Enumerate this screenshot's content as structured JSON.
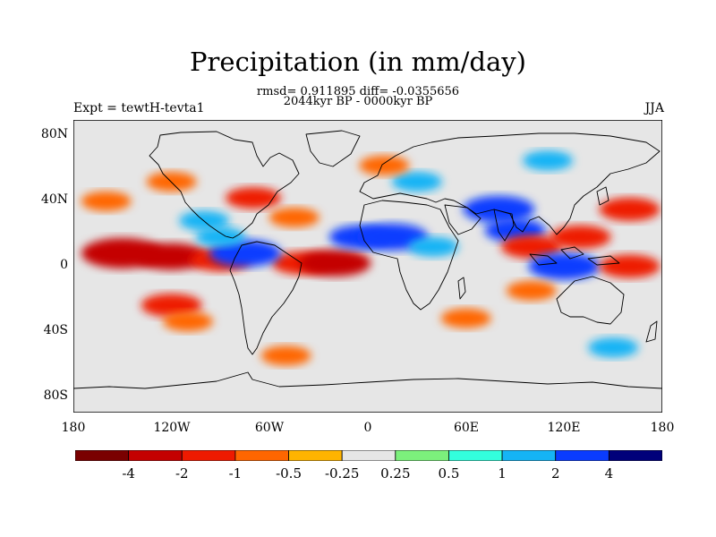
{
  "title": "Precipitation (in mm/day)",
  "subtitle_stats": "rmsd= 0.911895 diff= -0.0355656",
  "subtitle_period": "2044kyr BP - 0000kyr BP",
  "left_label": "Expt = tewtH-tevta1",
  "right_label": "JJA",
  "y_ticks": [
    "80N",
    "40N",
    "0",
    "40S",
    "80S"
  ],
  "x_ticks": [
    "180",
    "120W",
    "60W",
    "0",
    "60E",
    "120E",
    "180"
  ],
  "colorbar": {
    "levels": [
      "-4",
      "-2",
      "-1",
      "-0.5",
      "-0.25",
      "0.25",
      "0.5",
      "1",
      "2",
      "4"
    ],
    "colors": [
      "#7a0000",
      "#c40000",
      "#ee1a00",
      "#ff6600",
      "#ffb400",
      "#e6e6e6",
      "#7cf07c",
      "#33ffdd",
      "#15b4f5",
      "#0a3cff",
      "#00007a"
    ]
  },
  "chart_data": {
    "type": "heatmap",
    "title": "Precipitation (in mm/day)",
    "variable": "Precipitation difference",
    "units": "mm/day",
    "season": "JJA",
    "experiment": "tewtH-tevta1",
    "period": "2044kyr BP - 0000kyr BP",
    "rmsd": 0.911895,
    "diff": -0.0355656,
    "lon_range": [
      -180,
      180
    ],
    "lat_range": [
      -90,
      90
    ],
    "contour_levels": [
      -4,
      -2,
      -1,
      -0.5,
      -0.25,
      0.25,
      0.5,
      1,
      2,
      4
    ],
    "features": [
      {
        "lon": -150,
        "lat": 8,
        "value": -4
      },
      {
        "lon": -120,
        "lat": 6,
        "value": -3
      },
      {
        "lon": -90,
        "lat": 4,
        "value": -2
      },
      {
        "lon": -40,
        "lat": 2,
        "value": -2
      },
      {
        "lon": -20,
        "lat": 2,
        "value": -3
      },
      {
        "lon": -120,
        "lat": -24,
        "value": -2
      },
      {
        "lon": -110,
        "lat": -34,
        "value": -1
      },
      {
        "lon": -75,
        "lat": 8,
        "value": 3
      },
      {
        "lon": -90,
        "lat": 18,
        "value": 1
      },
      {
        "lon": -100,
        "lat": 28,
        "value": 1
      },
      {
        "lon": -70,
        "lat": 42,
        "value": -1.5
      },
      {
        "lon": -45,
        "lat": 30,
        "value": -1
      },
      {
        "lon": -160,
        "lat": 40,
        "value": -1
      },
      {
        "lon": -120,
        "lat": 52,
        "value": -1
      },
      {
        "lon": -5,
        "lat": 18,
        "value": 2
      },
      {
        "lon": 15,
        "lat": 18,
        "value": 3
      },
      {
        "lon": 40,
        "lat": 12,
        "value": 1
      },
      {
        "lon": 30,
        "lat": 52,
        "value": 1
      },
      {
        "lon": 10,
        "lat": 62,
        "value": -1
      },
      {
        "lon": 80,
        "lat": 35,
        "value": 3
      },
      {
        "lon": 90,
        "lat": 22,
        "value": 2
      },
      {
        "lon": 100,
        "lat": 12,
        "value": -2
      },
      {
        "lon": 120,
        "lat": 0,
        "value": 3
      },
      {
        "lon": 130,
        "lat": 18,
        "value": -2
      },
      {
        "lon": 160,
        "lat": 35,
        "value": -2
      },
      {
        "lon": 160,
        "lat": 0,
        "value": -2
      },
      {
        "lon": 100,
        "lat": -15,
        "value": -1
      },
      {
        "lon": 60,
        "lat": -32,
        "value": -1
      },
      {
        "lon": 150,
        "lat": -50,
        "value": 1
      },
      {
        "lon": -50,
        "lat": -55,
        "value": -1
      },
      {
        "lon": 110,
        "lat": 65,
        "value": 1
      }
    ]
  }
}
